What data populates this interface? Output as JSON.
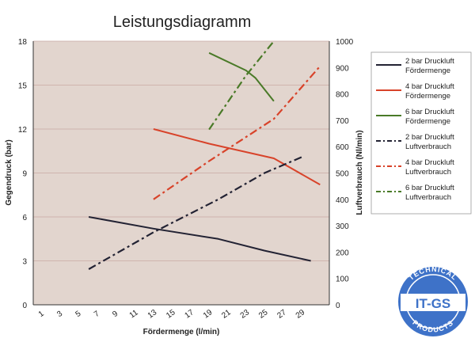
{
  "chart_data": {
    "type": "line",
    "title": "Leistungsdiagramm",
    "xlabel": "Fördermenge (l/min)",
    "ylabel_left": "Gegendruck (bar)",
    "ylabel_right": "Luftverbrauch (Nl/min)",
    "xlim": [
      0,
      32
    ],
    "xticks": [
      1,
      3,
      5,
      7,
      9,
      11,
      13,
      15,
      17,
      19,
      21,
      23,
      25,
      27,
      29
    ],
    "ylim_left": [
      0,
      18
    ],
    "yticks_left": [
      0,
      3,
      6,
      9,
      12,
      15,
      18
    ],
    "ylim_right": [
      0,
      1000
    ],
    "yticks_right": [
      0,
      100,
      200,
      300,
      400,
      500,
      600,
      700,
      800,
      900,
      1000
    ],
    "grid": "horizontal",
    "plot_background": "#e2d5ce",
    "legend_position": "right",
    "series": [
      {
        "name": "2 bar Druckluft Fördermenge",
        "axis": "left",
        "style": "solid",
        "color": "#222233",
        "x": [
          6,
          13,
          20,
          25,
          30
        ],
        "y": [
          6.0,
          5.2,
          4.5,
          3.7,
          3.0
        ]
      },
      {
        "name": "4 bar Druckluft Fördermenge",
        "axis": "left",
        "style": "solid",
        "color": "#d8432a",
        "x": [
          13,
          19,
          26,
          31
        ],
        "y": [
          12.0,
          11.0,
          10.0,
          8.2
        ]
      },
      {
        "name": "6 bar Druckluft Fördermenge",
        "axis": "left",
        "style": "solid",
        "color": "#4a7a28",
        "x": [
          19,
          23,
          24,
          26
        ],
        "y": [
          17.2,
          16.0,
          15.5,
          13.9
        ]
      },
      {
        "name": "2 bar Druckluft Luftverbrauch",
        "axis": "right",
        "style": "dashdot",
        "color": "#222233",
        "x": [
          6,
          13,
          20,
          25,
          29
        ],
        "y": [
          135,
          275,
          400,
          500,
          560
        ]
      },
      {
        "name": "4 bar Druckluft Luftverbrauch",
        "axis": "right",
        "style": "dashdot",
        "color": "#d8432a",
        "x": [
          13,
          19,
          26,
          31
        ],
        "y": [
          400,
          545,
          705,
          905
        ]
      },
      {
        "name": "6 bar Druckluft Luftverbrauch",
        "axis": "right",
        "style": "dashdot",
        "color": "#4a7a28",
        "x": [
          19,
          23,
          26
        ],
        "y": [
          665,
          870,
          1000
        ]
      }
    ]
  },
  "logo": {
    "text_top": "TECHNICAL",
    "text_center": "IT-GS",
    "text_bottom": "PRODUCTS",
    "color": "#3e72c8"
  }
}
